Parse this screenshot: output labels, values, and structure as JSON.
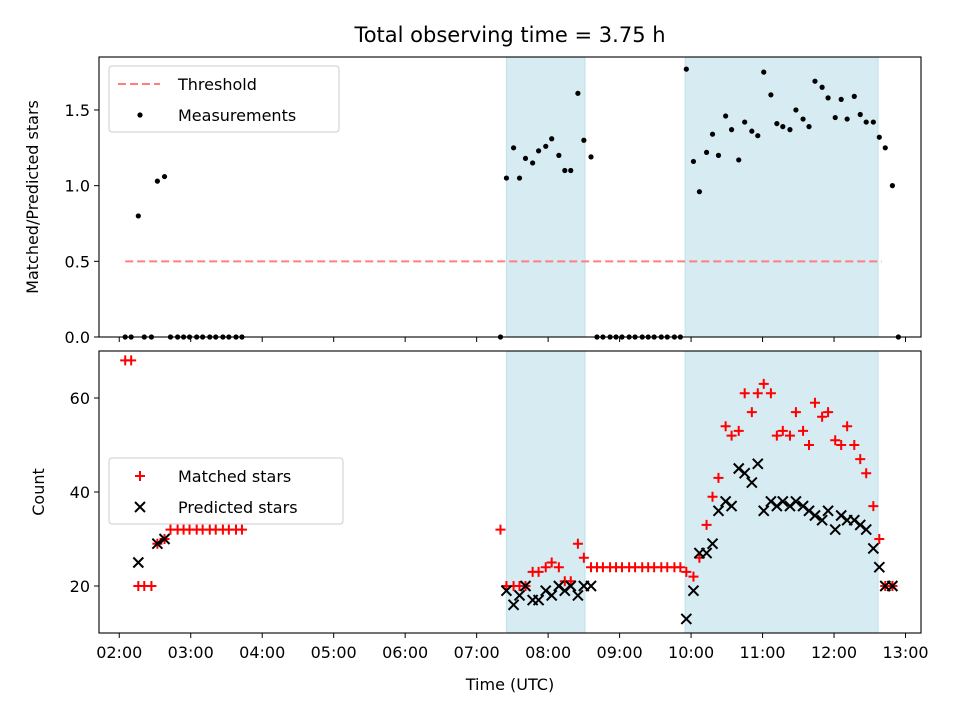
{
  "chart_data": [
    {
      "type": "scatter",
      "title": "Total observing time = 3.75 h",
      "ylabel": "Matched/Predicted stars",
      "xlim": [
        "01:43",
        "13:13"
      ],
      "ylim": [
        0,
        1.85
      ],
      "yticks": [
        "0.0",
        "0.5",
        "1.0",
        "1.5"
      ],
      "x_ticks_labeled": false,
      "grid": false,
      "legend": {
        "position": "upper-left",
        "entries": [
          "Threshold",
          "Measurements"
        ]
      },
      "shaded_intervals": [
        [
          "07:25",
          "08:31"
        ],
        [
          "09:55",
          "12:37"
        ]
      ],
      "shade_color": "#add8e6",
      "threshold": {
        "name": "Threshold",
        "value": 0.5,
        "x_range": [
          "02:05",
          "12:40"
        ],
        "color": "#ff7f7f",
        "style": "dashed"
      },
      "series": [
        {
          "name": "Measurements",
          "color": "#000000",
          "marker": "dot",
          "points": [
            [
              "02:05",
              0
            ],
            [
              "02:10",
              0
            ],
            [
              "02:16",
              0.8
            ],
            [
              "02:21",
              0
            ],
            [
              "02:27",
              0
            ],
            [
              "02:32",
              1.03
            ],
            [
              "02:38",
              1.06
            ],
            [
              "02:43",
              0
            ],
            [
              "02:49",
              0
            ],
            [
              "02:54",
              0
            ],
            [
              "02:59",
              0
            ],
            [
              "03:05",
              0
            ],
            [
              "03:10",
              0
            ],
            [
              "03:16",
              0
            ],
            [
              "03:21",
              0
            ],
            [
              "03:27",
              0
            ],
            [
              "03:32",
              0
            ],
            [
              "03:38",
              0
            ],
            [
              "03:43",
              0
            ],
            [
              "07:20",
              0
            ],
            [
              "07:25",
              1.05
            ],
            [
              "07:31",
              1.25
            ],
            [
              "07:36",
              1.05
            ],
            [
              "07:41",
              1.18
            ],
            [
              "07:47",
              1.15
            ],
            [
              "07:52",
              1.23
            ],
            [
              "07:58",
              1.26
            ],
            [
              "08:03",
              1.31
            ],
            [
              "08:09",
              1.2
            ],
            [
              "08:14",
              1.1
            ],
            [
              "08:19",
              1.1
            ],
            [
              "08:25",
              1.61
            ],
            [
              "08:30",
              1.3
            ],
            [
              "08:36",
              1.19
            ],
            [
              "08:41",
              0
            ],
            [
              "08:46",
              0
            ],
            [
              "08:52",
              0
            ],
            [
              "08:57",
              0
            ],
            [
              "09:02",
              0
            ],
            [
              "09:08",
              0
            ],
            [
              "09:13",
              0
            ],
            [
              "09:19",
              0
            ],
            [
              "09:24",
              0
            ],
            [
              "09:29",
              0
            ],
            [
              "09:35",
              0
            ],
            [
              "09:40",
              0
            ],
            [
              "09:46",
              0
            ],
            [
              "09:51",
              0
            ],
            [
              "09:56",
              1.77
            ],
            [
              "10:02",
              1.16
            ],
            [
              "10:07",
              0.96
            ],
            [
              "10:13",
              1.22
            ],
            [
              "10:18",
              1.34
            ],
            [
              "10:23",
              1.2
            ],
            [
              "10:29",
              1.46
            ],
            [
              "10:34",
              1.37
            ],
            [
              "10:40",
              1.17
            ],
            [
              "10:45",
              1.42
            ],
            [
              "10:51",
              1.36
            ],
            [
              "10:56",
              1.33
            ],
            [
              "11:01",
              1.75
            ],
            [
              "11:07",
              1.6
            ],
            [
              "11:12",
              1.41
            ],
            [
              "11:17",
              1.39
            ],
            [
              "11:23",
              1.37
            ],
            [
              "11:28",
              1.5
            ],
            [
              "11:34",
              1.44
            ],
            [
              "11:39",
              1.39
            ],
            [
              "11:44",
              1.69
            ],
            [
              "11:50",
              1.65
            ],
            [
              "11:55",
              1.58
            ],
            [
              "12:01",
              1.45
            ],
            [
              "12:06",
              1.57
            ],
            [
              "12:11",
              1.44
            ],
            [
              "12:17",
              1.59
            ],
            [
              "12:22",
              1.47
            ],
            [
              "12:27",
              1.42
            ],
            [
              "12:33",
              1.42
            ],
            [
              "12:38",
              1.32
            ],
            [
              "12:43",
              1.25
            ],
            [
              "12:49",
              1.0
            ],
            [
              "12:54",
              0
            ]
          ]
        }
      ]
    },
    {
      "type": "scatter",
      "xlabel": "Time (UTC)",
      "ylabel": "Count",
      "xlim": [
        "01:43",
        "13:13"
      ],
      "ylim": [
        10,
        70
      ],
      "yticks": [
        "20",
        "40",
        "60"
      ],
      "xticks": [
        "02:00",
        "03:00",
        "04:00",
        "05:00",
        "06:00",
        "07:00",
        "08:00",
        "09:00",
        "10:00",
        "11:00",
        "12:00",
        "13:00"
      ],
      "grid": false,
      "legend": {
        "position": "center-left",
        "entries": [
          "Matched stars",
          "Predicted stars"
        ]
      },
      "shaded_intervals": [
        [
          "07:25",
          "08:31"
        ],
        [
          "09:55",
          "12:37"
        ]
      ],
      "shade_color": "#add8e6",
      "series": [
        {
          "name": "Matched stars",
          "color": "#ff0000",
          "marker": "plus",
          "points": [
            [
              "02:05",
              68
            ],
            [
              "02:10",
              68
            ],
            [
              "02:16",
              20
            ],
            [
              "02:21",
              20
            ],
            [
              "02:27",
              20
            ],
            [
              "02:32",
              29
            ],
            [
              "02:38",
              30
            ],
            [
              "02:43",
              32
            ],
            [
              "02:49",
              32
            ],
            [
              "02:54",
              32
            ],
            [
              "02:59",
              32
            ],
            [
              "03:05",
              32
            ],
            [
              "03:10",
              32
            ],
            [
              "03:16",
              32
            ],
            [
              "03:21",
              32
            ],
            [
              "03:27",
              32
            ],
            [
              "03:32",
              32
            ],
            [
              "03:38",
              32
            ],
            [
              "03:43",
              32
            ],
            [
              "07:20",
              32
            ],
            [
              "07:25",
              20
            ],
            [
              "07:31",
              20
            ],
            [
              "07:36",
              20
            ],
            [
              "07:41",
              20
            ],
            [
              "07:47",
              23
            ],
            [
              "07:52",
              23
            ],
            [
              "07:58",
              24
            ],
            [
              "08:03",
              25
            ],
            [
              "08:09",
              24
            ],
            [
              "08:14",
              21
            ],
            [
              "08:19",
              21
            ],
            [
              "08:25",
              29
            ],
            [
              "08:30",
              26
            ],
            [
              "08:36",
              24
            ],
            [
              "08:41",
              24
            ],
            [
              "08:46",
              24
            ],
            [
              "08:52",
              24
            ],
            [
              "08:57",
              24
            ],
            [
              "09:02",
              24
            ],
            [
              "09:08",
              24
            ],
            [
              "09:13",
              24
            ],
            [
              "09:19",
              24
            ],
            [
              "09:24",
              24
            ],
            [
              "09:29",
              24
            ],
            [
              "09:35",
              24
            ],
            [
              "09:40",
              24
            ],
            [
              "09:46",
              24
            ],
            [
              "09:51",
              24
            ],
            [
              "09:56",
              23
            ],
            [
              "10:02",
              22
            ],
            [
              "10:07",
              26
            ],
            [
              "10:13",
              33
            ],
            [
              "10:18",
              39
            ],
            [
              "10:23",
              43
            ],
            [
              "10:29",
              54
            ],
            [
              "10:34",
              52
            ],
            [
              "10:40",
              53
            ],
            [
              "10:45",
              61
            ],
            [
              "10:51",
              57
            ],
            [
              "10:56",
              61
            ],
            [
              "11:01",
              63
            ],
            [
              "11:07",
              61
            ],
            [
              "11:12",
              52
            ],
            [
              "11:17",
              53
            ],
            [
              "11:23",
              52
            ],
            [
              "11:28",
              57
            ],
            [
              "11:34",
              53
            ],
            [
              "11:39",
              50
            ],
            [
              "11:44",
              59
            ],
            [
              "11:50",
              56
            ],
            [
              "11:55",
              57
            ],
            [
              "12:01",
              51
            ],
            [
              "12:06",
              50
            ],
            [
              "12:11",
              54
            ],
            [
              "12:17",
              50
            ],
            [
              "12:22",
              47
            ],
            [
              "12:27",
              44
            ],
            [
              "12:33",
              37
            ],
            [
              "12:38",
              30
            ],
            [
              "12:43",
              20
            ],
            [
              "12:49",
              20
            ]
          ]
        },
        {
          "name": "Predicted stars",
          "color": "#000000",
          "marker": "x",
          "points": [
            [
              "02:16",
              25
            ],
            [
              "02:32",
              29
            ],
            [
              "02:38",
              30
            ],
            [
              "07:25",
              19
            ],
            [
              "07:31",
              16
            ],
            [
              "07:36",
              18
            ],
            [
              "07:41",
              20
            ],
            [
              "07:47",
              17
            ],
            [
              "07:52",
              17
            ],
            [
              "07:58",
              19
            ],
            [
              "08:03",
              18
            ],
            [
              "08:09",
              20
            ],
            [
              "08:14",
              19
            ],
            [
              "08:19",
              20
            ],
            [
              "08:25",
              18
            ],
            [
              "08:30",
              20
            ],
            [
              "08:36",
              20
            ],
            [
              "09:56",
              13
            ],
            [
              "10:02",
              19
            ],
            [
              "10:07",
              27
            ],
            [
              "10:13",
              27
            ],
            [
              "10:18",
              29
            ],
            [
              "10:23",
              36
            ],
            [
              "10:29",
              38
            ],
            [
              "10:34",
              37
            ],
            [
              "10:40",
              45
            ],
            [
              "10:45",
              44
            ],
            [
              "10:51",
              42
            ],
            [
              "10:56",
              46
            ],
            [
              "11:01",
              36
            ],
            [
              "11:07",
              38
            ],
            [
              "11:12",
              37
            ],
            [
              "11:17",
              38
            ],
            [
              "11:23",
              37
            ],
            [
              "11:28",
              38
            ],
            [
              "11:34",
              37
            ],
            [
              "11:39",
              36
            ],
            [
              "11:44",
              35
            ],
            [
              "11:50",
              34
            ],
            [
              "11:55",
              36
            ],
            [
              "12:01",
              32
            ],
            [
              "12:06",
              35
            ],
            [
              "12:11",
              34
            ],
            [
              "12:17",
              34
            ],
            [
              "12:22",
              33
            ],
            [
              "12:27",
              32
            ],
            [
              "12:33",
              28
            ],
            [
              "12:38",
              24
            ],
            [
              "12:43",
              20
            ],
            [
              "12:49",
              20
            ]
          ]
        }
      ]
    }
  ]
}
